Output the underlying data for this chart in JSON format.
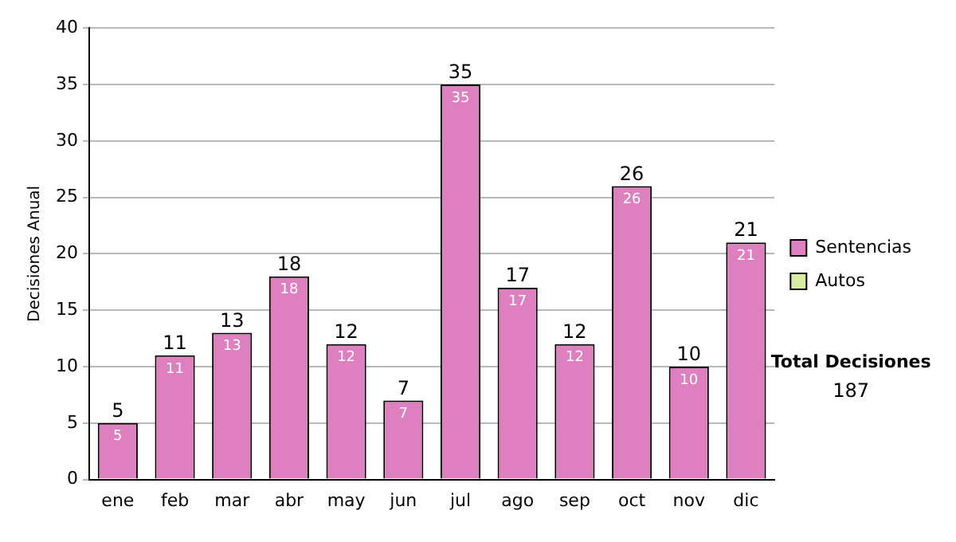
{
  "chart_data": {
    "type": "bar",
    "ylabel": "Decisiones Anual",
    "categories": [
      "ene",
      "feb",
      "mar",
      "abr",
      "may",
      "jun",
      "jul",
      "ago",
      "sep",
      "oct",
      "nov",
      "dic"
    ],
    "series": [
      {
        "name": "Sentencias",
        "color": "#de80c0",
        "values": [
          5,
          11,
          13,
          18,
          12,
          7,
          35,
          17,
          12,
          26,
          10,
          21
        ]
      },
      {
        "name": "Autos",
        "color": "#d8eca0",
        "values": [
          null,
          null,
          null,
          null,
          null,
          null,
          null,
          null,
          null,
          null,
          null,
          null
        ]
      }
    ],
    "stacked": true,
    "totals": [
      "5",
      "11",
      "13",
      "18",
      "12",
      "7",
      "35",
      "17",
      "12",
      "26",
      "10",
      "21"
    ],
    "data_labels": true,
    "ylim": [
      0,
      40
    ],
    "yticks": [
      0,
      5,
      10,
      15,
      20,
      25,
      30,
      35,
      40
    ],
    "grid": "y",
    "legend": "right",
    "annotations": [
      "Total Decisiones",
      "187"
    ]
  }
}
